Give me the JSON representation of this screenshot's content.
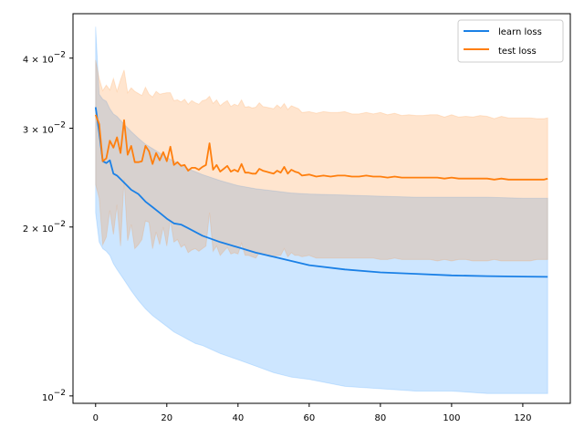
{
  "chart_data": {
    "type": "line",
    "y_scale": "log",
    "xlim": [
      -6.35,
      133.35
    ],
    "ylim": [
      0.0097,
      0.048
    ],
    "x_ticks": [
      0,
      20,
      40,
      60,
      80,
      100,
      120
    ],
    "x_tick_labels": [
      "0",
      "20",
      "40",
      "60",
      "80",
      "100",
      "120"
    ],
    "y_ticks": [
      0.01,
      0.02,
      0.03,
      0.04
    ],
    "y_tick_labels": [
      {
        "mantissa": "10",
        "exp": "−2"
      },
      {
        "mantissa": "2 × 10",
        "exp": "−2"
      },
      {
        "mantissa": "3 × 10",
        "exp": "−2"
      },
      {
        "mantissa": "4 × 10",
        "exp": "−2"
      }
    ],
    "legend_position": "top-right",
    "grid": false,
    "series": [
      {
        "name": "learn loss",
        "color": "#1a80e6",
        "band_color": "#1a8cff",
        "band_opacity": 0.22,
        "x": [
          0,
          1,
          2,
          3,
          4,
          5,
          6,
          8,
          10,
          12,
          14,
          16,
          18,
          20,
          22,
          24,
          26,
          28,
          30,
          35,
          40,
          45,
          50,
          55,
          60,
          70,
          80,
          90,
          100,
          110,
          120,
          127
        ],
        "y": [
          0.0327,
          0.0295,
          0.0262,
          0.026,
          0.0263,
          0.0249,
          0.0247,
          0.024,
          0.0233,
          0.0229,
          0.0222,
          0.0217,
          0.0212,
          0.0207,
          0.0203,
          0.0202,
          0.0199,
          0.0196,
          0.0193,
          0.0188,
          0.0184,
          0.018,
          0.0177,
          0.0174,
          0.0171,
          0.0168,
          0.0166,
          0.0165,
          0.0164,
          0.01635,
          0.01632,
          0.0163
        ],
        "band_upper": [
          0.0455,
          0.0345,
          0.0338,
          0.0335,
          0.0325,
          0.0318,
          0.0315,
          0.0305,
          0.0296,
          0.0288,
          0.0281,
          0.0276,
          0.0271,
          0.0266,
          0.0262,
          0.0258,
          0.0254,
          0.0251,
          0.0248,
          0.0242,
          0.0237,
          0.0234,
          0.0232,
          0.023,
          0.0229,
          0.0228,
          0.0227,
          0.0226,
          0.0226,
          0.0226,
          0.0225,
          0.0225
        ],
        "band_lower": [
          0.0212,
          0.0188,
          0.0183,
          0.0181,
          0.0178,
          0.0172,
          0.0168,
          0.0161,
          0.0154,
          0.0148,
          0.0143,
          0.0139,
          0.0136,
          0.0133,
          0.013,
          0.0128,
          0.0126,
          0.0124,
          0.0123,
          0.0119,
          0.0116,
          0.0113,
          0.011,
          0.0108,
          0.0107,
          0.0104,
          0.0103,
          0.0102,
          0.0102,
          0.0101,
          0.0101,
          0.0101
        ]
      },
      {
        "name": "test loss",
        "color": "#ff7f0e",
        "band_color": "#ff7f0e",
        "band_opacity": 0.2,
        "x": [
          0,
          1,
          2,
          3,
          4,
          5,
          6,
          7,
          8,
          9,
          10,
          11,
          12,
          13,
          14,
          15,
          16,
          17,
          18,
          19,
          20,
          21,
          22,
          23,
          24,
          25,
          26,
          27,
          28,
          29,
          30,
          31,
          32,
          33,
          34,
          35,
          36,
          37,
          38,
          39,
          40,
          41,
          42,
          43,
          44,
          45,
          46,
          47,
          48,
          49,
          50,
          51,
          52,
          53,
          54,
          55,
          56,
          57,
          58,
          60,
          62,
          64,
          66,
          68,
          70,
          72,
          74,
          76,
          78,
          80,
          82,
          84,
          86,
          88,
          90,
          92,
          94,
          96,
          98,
          100,
          102,
          104,
          106,
          108,
          110,
          112,
          114,
          116,
          118,
          120,
          122,
          124,
          126,
          127
        ],
        "y": [
          0.0317,
          0.0305,
          0.0262,
          0.0265,
          0.0285,
          0.0277,
          0.0289,
          0.0271,
          0.031,
          0.0269,
          0.0279,
          0.0261,
          0.0261,
          0.0262,
          0.0279,
          0.0273,
          0.0259,
          0.0271,
          0.0263,
          0.0272,
          0.0262,
          0.0278,
          0.0258,
          0.0261,
          0.0257,
          0.0258,
          0.0252,
          0.0255,
          0.0255,
          0.0253,
          0.0256,
          0.0258,
          0.0282,
          0.0253,
          0.0258,
          0.0251,
          0.0254,
          0.0257,
          0.0251,
          0.0253,
          0.0251,
          0.0259,
          0.025,
          0.025,
          0.0249,
          0.0249,
          0.0254,
          0.0252,
          0.0251,
          0.025,
          0.0249,
          0.0252,
          0.025,
          0.0256,
          0.0249,
          0.0253,
          0.0251,
          0.025,
          0.0247,
          0.0248,
          0.0246,
          0.0247,
          0.0246,
          0.0247,
          0.0247,
          0.0246,
          0.0246,
          0.0247,
          0.0246,
          0.0246,
          0.0245,
          0.0246,
          0.0245,
          0.0245,
          0.0245,
          0.0245,
          0.0245,
          0.0245,
          0.0244,
          0.0245,
          0.0244,
          0.0244,
          0.0244,
          0.0244,
          0.0244,
          0.0243,
          0.0244,
          0.0243,
          0.0243,
          0.0243,
          0.0243,
          0.0243,
          0.0243,
          0.0244
        ],
        "band_upper": [
          0.0397,
          0.0368,
          0.035,
          0.0358,
          0.0351,
          0.0368,
          0.0349,
          0.0366,
          0.0381,
          0.0347,
          0.0354,
          0.0349,
          0.0346,
          0.0343,
          0.0355,
          0.0345,
          0.0341,
          0.0349,
          0.0345,
          0.0346,
          0.0347,
          0.0347,
          0.0336,
          0.0337,
          0.0334,
          0.0338,
          0.0331,
          0.0336,
          0.0333,
          0.0331,
          0.0336,
          0.0337,
          0.0342,
          0.0332,
          0.0337,
          0.0329,
          0.0333,
          0.0336,
          0.0328,
          0.0331,
          0.0329,
          0.0337,
          0.0327,
          0.0328,
          0.0326,
          0.0327,
          0.0333,
          0.0328,
          0.0327,
          0.0326,
          0.0325,
          0.033,
          0.0326,
          0.0332,
          0.0324,
          0.0329,
          0.0327,
          0.0325,
          0.032,
          0.0321,
          0.0319,
          0.0321,
          0.032,
          0.032,
          0.0321,
          0.0318,
          0.0318,
          0.032,
          0.0318,
          0.032,
          0.0317,
          0.0319,
          0.0316,
          0.0317,
          0.0316,
          0.0316,
          0.0317,
          0.0317,
          0.0314,
          0.0317,
          0.0314,
          0.0315,
          0.0314,
          0.0316,
          0.0315,
          0.0312,
          0.0315,
          0.0313,
          0.0313,
          0.0313,
          0.0313,
          0.0312,
          0.0312,
          0.0313
        ],
        "band_lower": [
          0.0238,
          0.0225,
          0.0186,
          0.0192,
          0.0214,
          0.0194,
          0.0219,
          0.0185,
          0.0243,
          0.0189,
          0.0202,
          0.0183,
          0.0186,
          0.019,
          0.0205,
          0.0204,
          0.0183,
          0.0196,
          0.0186,
          0.02,
          0.0185,
          0.0206,
          0.0188,
          0.019,
          0.0184,
          0.0186,
          0.018,
          0.0182,
          0.0183,
          0.0181,
          0.0183,
          0.0185,
          0.0212,
          0.0181,
          0.0185,
          0.0178,
          0.0181,
          0.0184,
          0.0179,
          0.018,
          0.0179,
          0.0187,
          0.0178,
          0.0178,
          0.0177,
          0.0176,
          0.018,
          0.0179,
          0.0178,
          0.0177,
          0.0177,
          0.0178,
          0.0178,
          0.0183,
          0.0177,
          0.018,
          0.0178,
          0.0178,
          0.0177,
          0.0178,
          0.0176,
          0.0176,
          0.0176,
          0.0176,
          0.0176,
          0.0176,
          0.0176,
          0.0176,
          0.0176,
          0.0175,
          0.0175,
          0.0176,
          0.0175,
          0.0175,
          0.0175,
          0.0175,
          0.0175,
          0.0174,
          0.0175,
          0.0174,
          0.0175,
          0.0175,
          0.0174,
          0.0174,
          0.0174,
          0.0175,
          0.0174,
          0.0174,
          0.0174,
          0.0174,
          0.0174,
          0.0175,
          0.0175,
          0.0175
        ]
      }
    ]
  }
}
